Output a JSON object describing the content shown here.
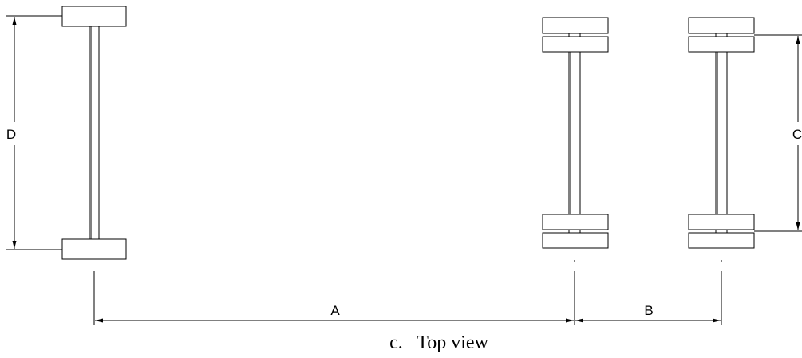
{
  "diagram": {
    "dimensions": {
      "a": "A",
      "b": "B",
      "c": "C",
      "d": "D"
    },
    "caption": "c.   Top view"
  },
  "colors": {
    "stroke": "#000000",
    "background": "#ffffff"
  }
}
